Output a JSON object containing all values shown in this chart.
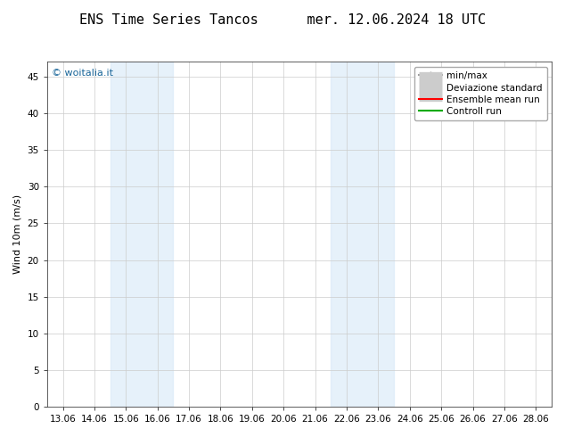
{
  "title": "ENS Time Series Tancos      mer. 12.06.2024 18 UTC",
  "ylabel": "Wind 10m (m/s)",
  "xlabel": "",
  "watermark": "© woitalia.it",
  "background_color": "#ffffff",
  "plot_bg_color": "#ffffff",
  "xlim_start": 0,
  "xlim_end": 15,
  "ylim": [
    0,
    47
  ],
  "yticks": [
    0,
    5,
    10,
    15,
    20,
    25,
    30,
    35,
    40,
    45
  ],
  "xtick_labels": [
    "13.06",
    "14.06",
    "15.06",
    "16.06",
    "17.06",
    "18.06",
    "19.06",
    "20.06",
    "21.06",
    "22.06",
    "23.06",
    "24.06",
    "25.06",
    "26.06",
    "27.06",
    "28.06"
  ],
  "shade_bands": [
    {
      "xstart": 2,
      "xend": 4,
      "color": "#d6e8f7",
      "alpha": 0.6
    },
    {
      "xstart": 9,
      "xend": 11,
      "color": "#d6e8f7",
      "alpha": 0.6
    }
  ],
  "legend_items": [
    {
      "label": "min/max",
      "color": "#999999",
      "lw": 1.5,
      "style": "|-|"
    },
    {
      "label": "Deviazione standard",
      "color": "#cccccc",
      "lw": 6,
      "style": "solid"
    },
    {
      "label": "Ensemble mean run",
      "color": "#ff0000",
      "lw": 1.5,
      "style": "solid"
    },
    {
      "label": "Controll run",
      "color": "#00aa00",
      "lw": 1.5,
      "style": "solid"
    }
  ],
  "title_fontsize": 11,
  "axis_fontsize": 8,
  "tick_fontsize": 7.5,
  "watermark_fontsize": 8,
  "grid_color": "#cccccc",
  "grid_lw": 0.5,
  "spine_color": "#444444"
}
